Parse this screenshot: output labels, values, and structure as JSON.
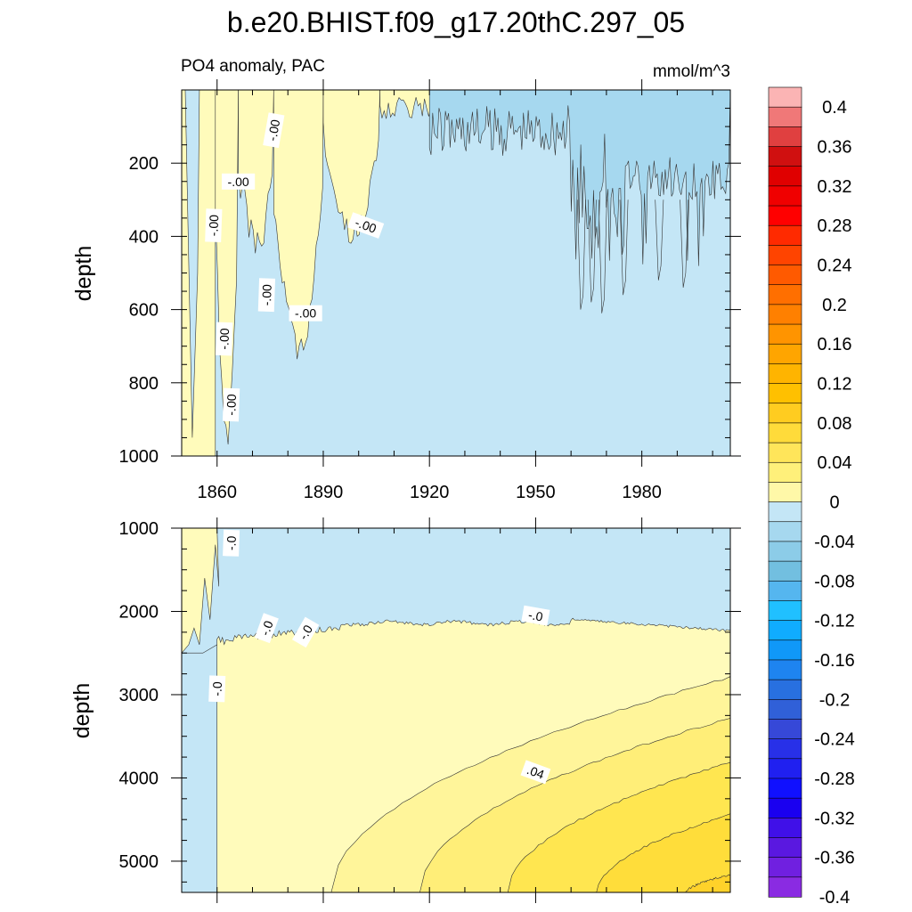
{
  "chart_data": {
    "type": "heatmap",
    "title": "b.e20.BHIST.f09_g17.20thC.297_05",
    "subtitle_left": "PO4 anomaly, PAC",
    "subtitle_right": "mmol/m^3",
    "ylabel": "depth",
    "x_ticks": [
      "1860",
      "1890",
      "1920",
      "1950",
      "1980"
    ],
    "x_tick_values": [
      1860,
      1890,
      1920,
      1950,
      1980
    ],
    "xlim": [
      1850,
      2005
    ],
    "panels": [
      {
        "ylim": [
          0,
          1000
        ],
        "y_ticks": [
          "200",
          "400",
          "600",
          "800",
          "1000"
        ],
        "y_tick_values": [
          200,
          400,
          600,
          800,
          1000
        ]
      },
      {
        "ylim": [
          1000,
          5375
        ],
        "y_ticks": [
          "1000",
          "2000",
          "3000",
          "4000",
          "5000"
        ],
        "y_tick_values": [
          1000,
          2000,
          3000,
          4000,
          5000
        ]
      }
    ],
    "contour_labels_upper": [
      {
        "text": "-.00",
        "x": 1876,
        "y": 110,
        "angle": 80
      },
      {
        "text": "-.00",
        "x": 1866,
        "y": 250,
        "angle": 0
      },
      {
        "text": "-.00",
        "x": 1859,
        "y": 370,
        "angle": 88
      },
      {
        "text": "-.00",
        "x": 1902,
        "y": 370,
        "angle": -20
      },
      {
        "text": "-.00",
        "x": 1874,
        "y": 560,
        "angle": 88
      },
      {
        "text": "-.00",
        "x": 1885,
        "y": 610,
        "angle": 0
      },
      {
        "text": "-.00",
        "x": 1862,
        "y": 680,
        "angle": 88
      },
      {
        "text": "-.00",
        "x": 1864,
        "y": 860,
        "angle": 88
      }
    ],
    "contour_labels_lower": [
      {
        "text": "-.0",
        "x": 1864,
        "y": 1180,
        "angle": 88
      },
      {
        "text": "-.0",
        "x": 1874,
        "y": 2200,
        "angle": 70
      },
      {
        "text": "-.0",
        "x": 1885,
        "y": 2250,
        "angle": 60
      },
      {
        "text": "-.0",
        "x": 1950,
        "y": 2050,
        "angle": -10
      },
      {
        "text": "-.0",
        "x": 1860,
        "y": 2930,
        "angle": 88
      },
      {
        "text": ".04",
        "x": 1950,
        "y": 3930,
        "angle": -20
      }
    ],
    "colorbar": {
      "labels": [
        "0.4",
        "0.36",
        "0.32",
        "0.28",
        "0.24",
        "0.2",
        "0.16",
        "0.12",
        "0.08",
        "0.04",
        "0",
        "-0.04",
        "-0.08",
        "-0.12",
        "-0.16",
        "-0.2",
        "-0.24",
        "-0.28",
        "-0.32",
        "-0.36",
        "-0.4"
      ],
      "colors": [
        "#fbb4b4",
        "#f07878",
        "#e04040",
        "#d01010",
        "#e00000",
        "#f00000",
        "#ff0000",
        "#ff2a00",
        "#ff4400",
        "#ff5a00",
        "#ff6f00",
        "#ff8000",
        "#ff9400",
        "#ffa500",
        "#ffb400",
        "#ffc000",
        "#ffcc20",
        "#ffdb3a",
        "#ffe55a",
        "#fff07a",
        "#fff8a8",
        "#c4e6f6",
        "#a6d8ef",
        "#8ccce8",
        "#72bfe0",
        "#55b6ef",
        "#20c0ff",
        "#10acff",
        "#1098f8",
        "#1e84f0",
        "#2870e0",
        "#3060d8",
        "#3648d8",
        "#2830e8",
        "#2020f0",
        "#1010ff",
        "#1a00f0",
        "#4010e8",
        "#5a18e0",
        "#7020e0",
        "#8a2be2"
      ]
    },
    "fill_colors": {
      "neg_light": "#c4e6f6",
      "neg_mid": "#a6d8ef",
      "pos_0": "#fffbbb",
      "pos_1": "#fff59a",
      "pos_2": "#ffee78",
      "pos_3": "#ffe650",
      "pos_4": "#ffdd3a",
      "pos_5": "#ffd22a"
    }
  }
}
